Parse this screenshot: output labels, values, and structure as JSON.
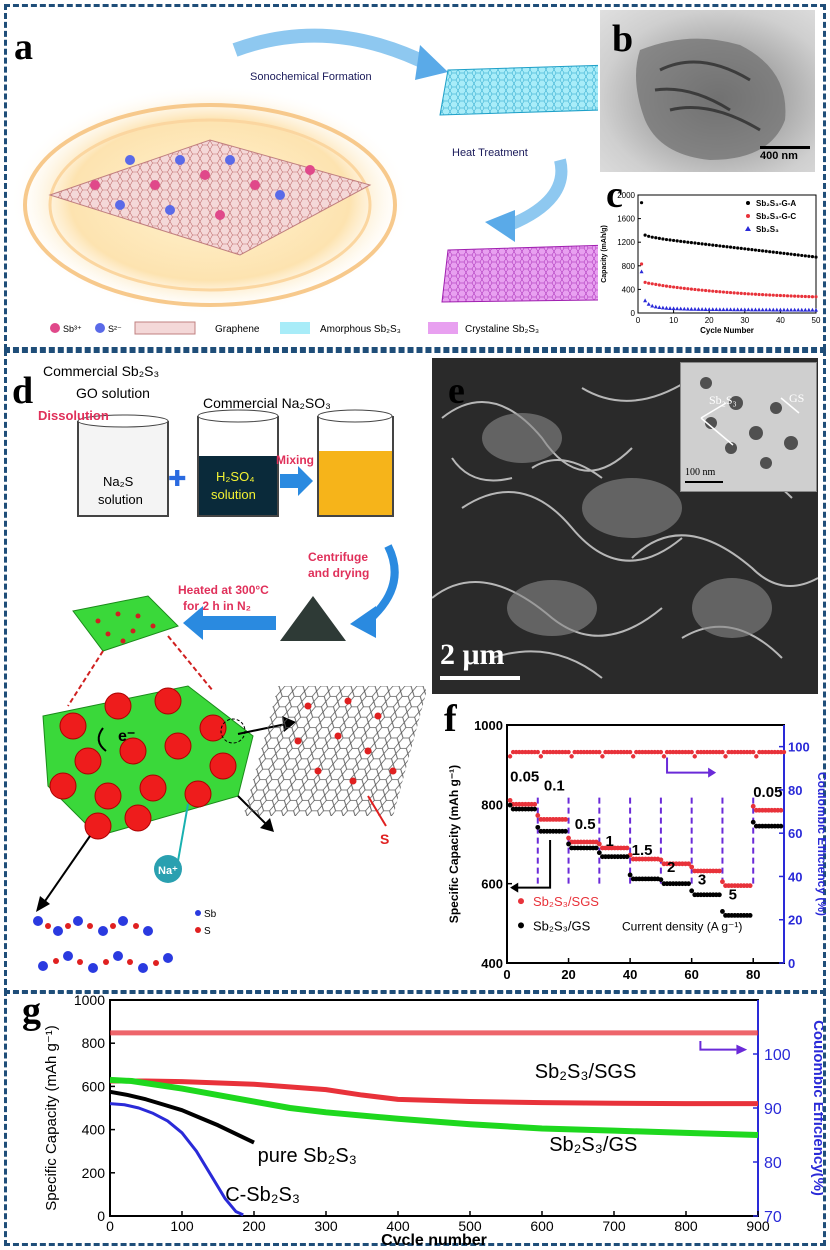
{
  "colors": {
    "frame": "#1f4e79",
    "accent_red": "#e8323a",
    "accent_blue": "#2a2ad8",
    "green": "#1ed81e"
  },
  "panel_labels": {
    "a": "a",
    "b": "b",
    "c": "c",
    "d": "d",
    "e": "e",
    "f": "f",
    "g": "g"
  },
  "panel_a": {
    "sono_label": "Sonochemical Formation",
    "heat_label": "Heat Treatment",
    "legend": {
      "sb3": "Sb³⁺",
      "s2": "S²⁻",
      "graphene": "Graphene",
      "amorphous": "Amorphous Sb₂S₃",
      "crystaline": "Crystaline Sb₂S₃"
    }
  },
  "panel_b": {
    "scalebar": "400 nm"
  },
  "panel_d": {
    "commercial_sb2s3": "Commercial Sb₂S₃",
    "go_solution": "GO solution",
    "commercial_na2so3": "Commercial Na₂SO₃",
    "dissolution": "Dissolution",
    "na2s_solution_1": "Na₂S",
    "na2s_solution_2": "solution",
    "h2so4_1": "H₂SO₄",
    "h2so4_2": "solution",
    "mixing": "Mixing",
    "centrifuge_1": "Centrifuge",
    "centrifuge_2": "and drying",
    "heated_1": "Heated at 300°C",
    "heated_2": "for 2 h in N₂",
    "electron": "e⁻",
    "na_ion": "Na⁺",
    "s_label": "S",
    "sb_legend": "Sb",
    "s_legend": "S"
  },
  "panel_e": {
    "scalebar_main": "2 μm",
    "inset_scalebar": "100 nm",
    "inset_sb2s3": "Sb₂S₃",
    "inset_gs": "GS"
  },
  "chart_data": [
    {
      "panel": "c",
      "type": "scatter",
      "xlabel": "Cycle Number",
      "ylabel": "Capacity (mAh/g)",
      "xlim": [
        0,
        50
      ],
      "ylim": [
        0,
        2000
      ],
      "xticks": [
        0,
        10,
        20,
        30,
        40,
        50
      ],
      "yticks": [
        0,
        400,
        800,
        1200,
        1600,
        2000
      ],
      "legend_position": "top-right",
      "series": [
        {
          "name": "Sb₂S₃-G-A",
          "color": "#000000",
          "marker": "circle",
          "x": [
            1,
            2,
            3,
            4,
            5,
            6,
            7,
            8,
            9,
            10,
            11,
            12,
            13,
            14,
            15,
            16,
            17,
            18,
            19,
            20,
            21,
            22,
            23,
            24,
            25,
            26,
            27,
            28,
            29,
            30,
            31,
            32,
            33,
            34,
            35,
            36,
            37,
            38,
            39,
            40,
            41,
            42,
            43,
            44,
            45,
            46,
            47,
            48,
            49,
            50
          ],
          "y": [
            1870,
            1320,
            1300,
            1285,
            1275,
            1265,
            1255,
            1245,
            1238,
            1230,
            1222,
            1215,
            1208,
            1200,
            1193,
            1186,
            1179,
            1172,
            1165,
            1158,
            1151,
            1144,
            1137,
            1130,
            1123,
            1116,
            1109,
            1102,
            1095,
            1088,
            1081,
            1074,
            1067,
            1060,
            1053,
            1046,
            1039,
            1032,
            1025,
            1018,
            1011,
            1004,
            997,
            990,
            983,
            976,
            969,
            962,
            955,
            948
          ]
        },
        {
          "name": "Sb₂S₃-G-C",
          "color": "#e8323a",
          "marker": "circle",
          "x": [
            1,
            2,
            3,
            4,
            5,
            6,
            7,
            8,
            9,
            10,
            11,
            12,
            13,
            14,
            15,
            16,
            17,
            18,
            19,
            20,
            21,
            22,
            23,
            24,
            25,
            26,
            27,
            28,
            29,
            30,
            31,
            32,
            33,
            34,
            35,
            36,
            37,
            38,
            39,
            40,
            41,
            42,
            43,
            44,
            45,
            46,
            47,
            48,
            49,
            50
          ],
          "y": [
            830,
            520,
            505,
            495,
            485,
            475,
            465,
            455,
            447,
            440,
            432,
            425,
            418,
            412,
            405,
            399,
            393,
            387,
            381,
            376,
            370,
            365,
            360,
            355,
            350,
            346,
            341,
            337,
            333,
            329,
            325,
            321,
            318,
            314,
            311,
            308,
            305,
            302,
            299,
            296,
            294,
            291,
            289,
            286,
            284,
            282,
            280,
            278,
            276,
            275
          ]
        },
        {
          "name": "Sb₂S₃",
          "color": "#2a2ad8",
          "marker": "triangle",
          "x": [
            1,
            2,
            3,
            4,
            5,
            6,
            7,
            8,
            9,
            10,
            11,
            12,
            13,
            14,
            15,
            16,
            17,
            18,
            19,
            20,
            21,
            22,
            23,
            24,
            25,
            26,
            27,
            28,
            29,
            30,
            31,
            32,
            33,
            34,
            35,
            36,
            37,
            38,
            39,
            40,
            41,
            42,
            43,
            44,
            45,
            46,
            47,
            48,
            49,
            50
          ],
          "y": [
            700,
            210,
            150,
            120,
            105,
            95,
            88,
            83,
            79,
            76,
            73,
            71,
            69,
            67,
            66,
            65,
            64,
            63,
            62,
            61,
            60,
            60,
            59,
            59,
            58,
            58,
            57,
            57,
            56,
            56,
            56,
            55,
            55,
            55,
            54,
            54,
            54,
            53,
            53,
            53,
            53,
            52,
            52,
            52,
            52,
            51,
            51,
            51,
            51,
            50
          ]
        }
      ]
    },
    {
      "panel": "f",
      "type": "scatter",
      "xlabel": "",
      "ylabel": "Specific Capacity (mAh g⁻¹)",
      "y2label": "Coulombic Efficiency (%)",
      "xlim": [
        0,
        90
      ],
      "ylim": [
        400,
        1000
      ],
      "y2lim": [
        0,
        110
      ],
      "xticks": [
        0,
        20,
        40,
        60,
        80
      ],
      "yticks": [
        400,
        600,
        800,
        1000
      ],
      "y2ticks": [
        0,
        20,
        40,
        60,
        80,
        100
      ],
      "rate_labels": [
        {
          "x": 1,
          "y": 858,
          "text": "0.05"
        },
        {
          "x": 12,
          "y": 835,
          "text": "0.1"
        },
        {
          "x": 22,
          "y": 738,
          "text": "0.5"
        },
        {
          "x": 32,
          "y": 695,
          "text": "1"
        },
        {
          "x": 40.5,
          "y": 672,
          "text": "1.5"
        },
        {
          "x": 52,
          "y": 630,
          "text": "2"
        },
        {
          "x": 62,
          "y": 598,
          "text": "3"
        },
        {
          "x": 72,
          "y": 560,
          "text": "5"
        },
        {
          "x": 80,
          "y": 818,
          "text": "0.05"
        }
      ],
      "legend": [
        "Sb₂S₃/SGS",
        "Sb₂S₃/GS"
      ],
      "current_density_label": "Current density (A g⁻¹)",
      "series": [
        {
          "name": "Sb₂S₃/SGS",
          "color": "#e8323a",
          "steps": [
            [
              1,
              10,
              800
            ],
            [
              10,
              20,
              762
            ],
            [
              20,
              30,
              705
            ],
            [
              30,
              40,
              690
            ],
            [
              40,
              50,
              662
            ],
            [
              50,
              60,
              650
            ],
            [
              60,
              70,
              632
            ],
            [
              70,
              80,
              595
            ],
            [
              80,
              90,
              785
            ]
          ],
          "ce": 97.5
        },
        {
          "name": "Sb₂S₃/GS",
          "color": "#000000",
          "steps": [
            [
              1,
              10,
              788
            ],
            [
              10,
              20,
              732
            ],
            [
              20,
              30,
              690
            ],
            [
              30,
              40,
              668
            ],
            [
              40,
              50,
              612
            ],
            [
              50,
              60,
              600
            ],
            [
              60,
              70,
              572
            ],
            [
              70,
              80,
              520
            ],
            [
              80,
              90,
              745
            ]
          ]
        }
      ]
    },
    {
      "panel": "g",
      "type": "line",
      "xlabel": "Cycle number",
      "ylabel": "Specific Capacity (mAh g⁻¹)",
      "y2label": "Coulombic Efficiency(%)",
      "xlim": [
        0,
        900
      ],
      "ylim": [
        0,
        1000
      ],
      "y2lim": [
        70,
        110
      ],
      "xticks": [
        0,
        100,
        200,
        300,
        400,
        500,
        600,
        700,
        800,
        900
      ],
      "yticks": [
        0,
        200,
        400,
        600,
        800,
        1000
      ],
      "y2ticks": [
        70,
        80,
        90,
        100
      ],
      "series": [
        {
          "name": "Sb₂S₃/SGS",
          "color": "#e8323a",
          "x": [
            0,
            50,
            100,
            200,
            300,
            350,
            400,
            500,
            600,
            700,
            800,
            900
          ],
          "y": [
            625,
            625,
            622,
            610,
            585,
            560,
            540,
            530,
            525,
            522,
            520,
            520
          ]
        },
        {
          "name": "Sb₂S₃/GS",
          "color": "#1ed81e",
          "x": [
            0,
            30,
            60,
            100,
            150,
            200,
            250,
            300,
            400,
            500,
            600,
            700,
            800,
            900
          ],
          "y": [
            630,
            625,
            610,
            590,
            560,
            530,
            500,
            480,
            450,
            425,
            405,
            395,
            385,
            375
          ]
        },
        {
          "name": "pure Sb₂S₃",
          "color": "#000000",
          "x": [
            0,
            25,
            50,
            75,
            100,
            125,
            150,
            175,
            200
          ],
          "y": [
            575,
            560,
            540,
            515,
            490,
            455,
            420,
            380,
            340
          ]
        },
        {
          "name": "C-Sb₂S₃",
          "color": "#2a2ad8",
          "x": [
            0,
            20,
            40,
            60,
            80,
            100,
            120,
            140,
            160,
            175,
            185
          ],
          "y": [
            520,
            515,
            500,
            475,
            440,
            385,
            300,
            190,
            80,
            20,
            5
          ]
        },
        {
          "name": "CE",
          "color": "#e8323a",
          "x": [
            0,
            900
          ],
          "y": [
            848,
            848
          ]
        }
      ]
    }
  ]
}
